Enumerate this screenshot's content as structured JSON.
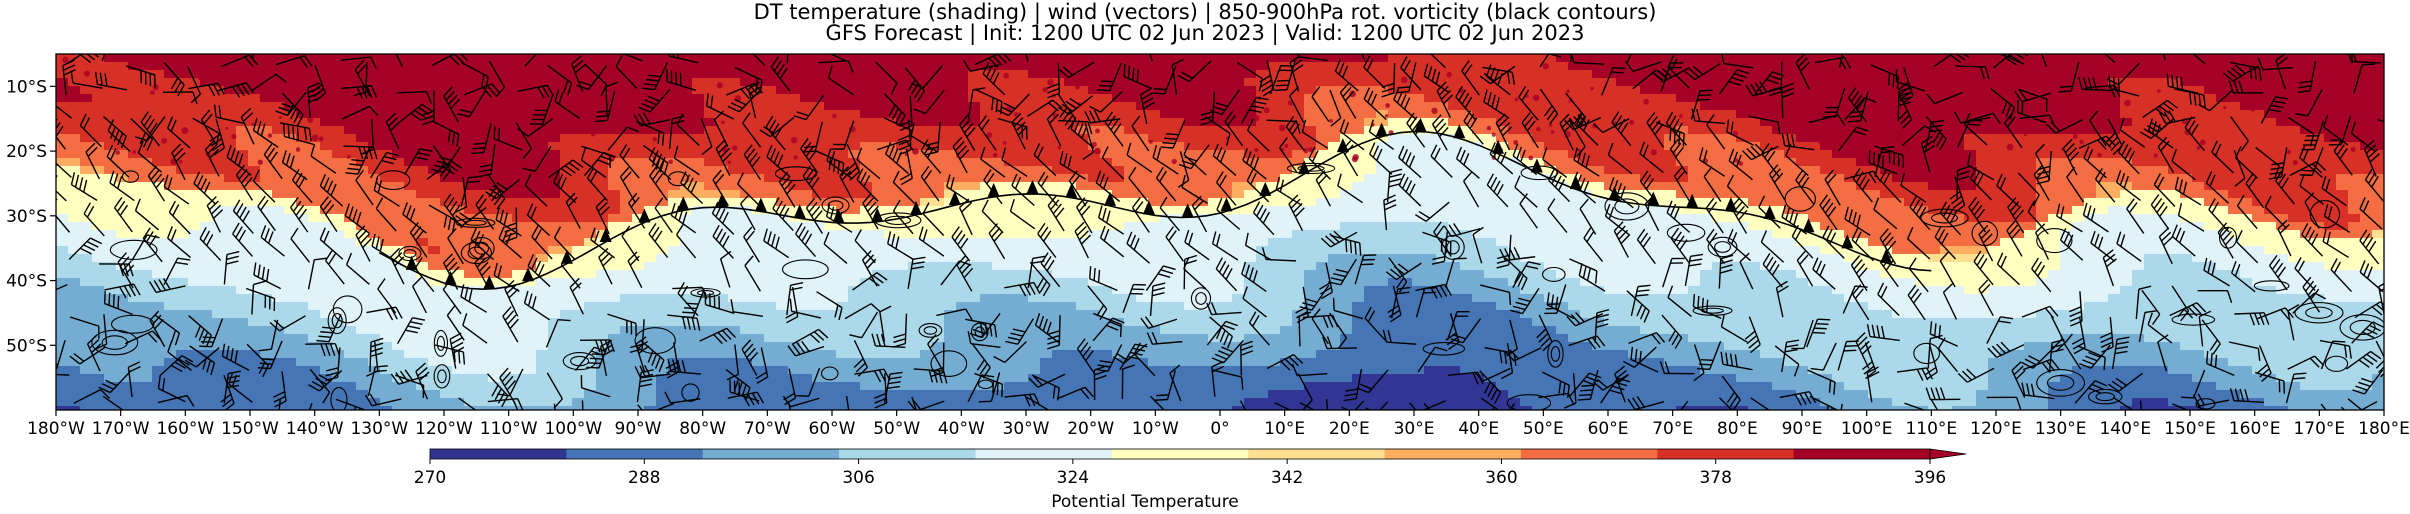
{
  "title": {
    "line1": "DT temperature (shading) | wind (vectors) | 850-900hPa rot. vorticity (black contours)",
    "line2": "GFS Forecast | Init: 1200 UTC 02 Jun 2023 | Valid: 1200 UTC 02 Jun 2023"
  },
  "map": {
    "projection": "equirectangular",
    "lon_range": [
      -180,
      180
    ],
    "lat_range": [
      -60,
      -5
    ],
    "lat_ticks": [
      {
        "value": -10,
        "label": "10°S"
      },
      {
        "value": -20,
        "label": "20°S"
      },
      {
        "value": -30,
        "label": "30°S"
      },
      {
        "value": -40,
        "label": "40°S"
      },
      {
        "value": -50,
        "label": "50°S"
      }
    ],
    "lon_ticks": [
      {
        "value": -180,
        "label": "180°W"
      },
      {
        "value": -170,
        "label": "170°W"
      },
      {
        "value": -160,
        "label": "160°W"
      },
      {
        "value": -150,
        "label": "150°W"
      },
      {
        "value": -140,
        "label": "140°W"
      },
      {
        "value": -130,
        "label": "130°W"
      },
      {
        "value": -120,
        "label": "120°W"
      },
      {
        "value": -110,
        "label": "110°W"
      },
      {
        "value": -100,
        "label": "100°W"
      },
      {
        "value": -90,
        "label": "90°W"
      },
      {
        "value": -80,
        "label": "80°W"
      },
      {
        "value": -70,
        "label": "70°W"
      },
      {
        "value": -60,
        "label": "60°W"
      },
      {
        "value": -50,
        "label": "50°W"
      },
      {
        "value": -40,
        "label": "40°W"
      },
      {
        "value": -30,
        "label": "30°W"
      },
      {
        "value": -20,
        "label": "20°W"
      },
      {
        "value": -10,
        "label": "10°W"
      },
      {
        "value": 0,
        "label": "0°"
      },
      {
        "value": 10,
        "label": "10°E"
      },
      {
        "value": 20,
        "label": "20°E"
      },
      {
        "value": 30,
        "label": "30°E"
      },
      {
        "value": 40,
        "label": "40°E"
      },
      {
        "value": 50,
        "label": "50°E"
      },
      {
        "value": 60,
        "label": "60°E"
      },
      {
        "value": 70,
        "label": "70°E"
      },
      {
        "value": 80,
        "label": "80°E"
      },
      {
        "value": 90,
        "label": "90°E"
      },
      {
        "value": 100,
        "label": "100°E"
      },
      {
        "value": 110,
        "label": "110°E"
      },
      {
        "value": 120,
        "label": "120°E"
      },
      {
        "value": 130,
        "label": "130°E"
      },
      {
        "value": 140,
        "label": "140°E"
      },
      {
        "value": 150,
        "label": "150°E"
      },
      {
        "value": 160,
        "label": "160°E"
      },
      {
        "value": 170,
        "label": "170°E"
      },
      {
        "value": 180,
        "label": "180°E"
      }
    ],
    "layers": [
      "potential temperature shading",
      "wind barbs",
      "vorticity contours"
    ]
  },
  "colorbar": {
    "label": "Potential Temperature",
    "min": 270,
    "max": 396,
    "extend": "max",
    "tick_values": [
      270,
      288,
      306,
      324,
      342,
      360,
      378,
      396
    ],
    "colors": [
      "#313695",
      "#4575b4",
      "#74add1",
      "#abd9e9",
      "#e0f3f8",
      "#ffffbf",
      "#fee090",
      "#fdae61",
      "#f46d43",
      "#d73027",
      "#a50026"
    ]
  },
  "colors": {
    "contour": "#000000",
    "barb": "#000000"
  }
}
